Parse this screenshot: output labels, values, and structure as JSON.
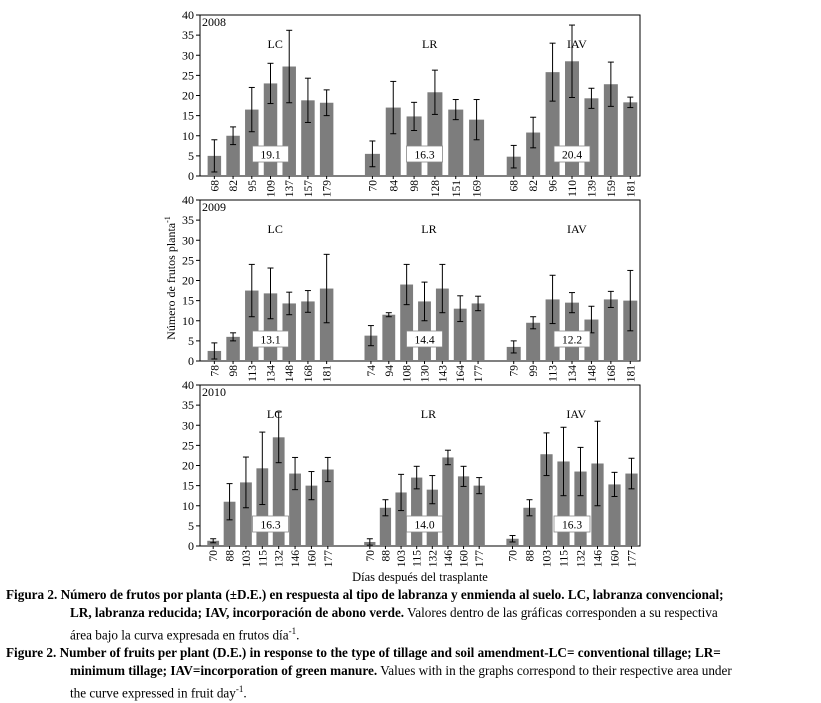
{
  "chart_data": {
    "type": "bar",
    "ylabel": "Número de frutos planta-1",
    "ylabel_main": "Número de frutos planta",
    "ylabel_sup": "-1",
    "xlabel": "Días después del trasplante",
    "ylim": [
      0,
      40
    ],
    "yticks": [
      0,
      5,
      10,
      15,
      20,
      25,
      30,
      35,
      40
    ],
    "panels": [
      {
        "year": "2008",
        "groups": [
          {
            "name": "LC",
            "area": "19.1",
            "categories": [
              "68",
              "82",
              "95",
              "109",
              "137",
              "157",
              "179"
            ],
            "values": [
              5.0,
              10.0,
              16.5,
              23.0,
              27.2,
              18.8,
              18.2
            ],
            "errors": [
              4.0,
              2.2,
              5.5,
              5.0,
              9.0,
              5.5,
              3.2
            ]
          },
          {
            "name": "LR",
            "area": "16.3",
            "categories": [
              "70",
              "84",
              "98",
              "128",
              "151",
              "169"
            ],
            "values": [
              5.5,
              17.0,
              14.8,
              20.8,
              16.5,
              14.0
            ],
            "errors": [
              3.2,
              6.5,
              3.5,
              5.5,
              2.5,
              5.0
            ]
          },
          {
            "name": "IAV",
            "area": "20.4",
            "categories": [
              "68",
              "82",
              "96",
              "110",
              "139",
              "159",
              "181"
            ],
            "values": [
              4.8,
              10.8,
              25.8,
              28.5,
              19.3,
              22.8,
              18.3
            ],
            "errors": [
              2.8,
              3.8,
              7.2,
              9.0,
              2.5,
              5.5,
              1.3
            ]
          }
        ]
      },
      {
        "year": "2009",
        "groups": [
          {
            "name": "LC",
            "area": "13.1",
            "categories": [
              "78",
              "98",
              "113",
              "134",
              "148",
              "168",
              "181"
            ],
            "values": [
              2.5,
              6.0,
              17.5,
              16.8,
              14.3,
              14.8,
              18.0
            ],
            "errors": [
              2.0,
              1.0,
              6.5,
              6.3,
              2.8,
              2.7,
              8.5
            ]
          },
          {
            "name": "LR",
            "area": "14.4",
            "categories": [
              "74",
              "94",
              "108",
              "130",
              "143",
              "164",
              "177"
            ],
            "values": [
              6.3,
              11.5,
              19.0,
              14.8,
              18.0,
              13.0,
              14.3
            ],
            "errors": [
              2.5,
              0.5,
              5.0,
              4.8,
              6.0,
              3.2,
              1.8
            ]
          },
          {
            "name": "IAV",
            "area": "12.2",
            "categories": [
              "79",
              "99",
              "113",
              "134",
              "148",
              "168",
              "181"
            ],
            "values": [
              3.5,
              9.5,
              15.3,
              14.5,
              10.3,
              15.3,
              15.0
            ],
            "errors": [
              1.5,
              1.5,
              6.0,
              2.5,
              3.3,
              2.0,
              7.5
            ]
          }
        ]
      },
      {
        "year": "2010",
        "groups": [
          {
            "name": "LC",
            "area": "16.3",
            "categories": [
              "70",
              "88",
              "103",
              "115",
              "132",
              "146",
              "160",
              "177"
            ],
            "values": [
              1.3,
              11.0,
              15.8,
              19.3,
              27.0,
              18.0,
              15.0,
              19.0
            ],
            "errors": [
              0.5,
              4.5,
              6.3,
              9.0,
              6.3,
              4.0,
              3.5,
              3.0
            ]
          },
          {
            "name": "LR",
            "area": "14.0",
            "categories": [
              "70",
              "88",
              "103",
              "115",
              "132",
              "146",
              "160",
              "177"
            ],
            "values": [
              1.0,
              9.5,
              13.3,
              17.0,
              14.0,
              22.0,
              17.3,
              15.0
            ],
            "errors": [
              0.8,
              2.0,
              4.5,
              2.8,
              3.5,
              1.8,
              2.5,
              2.0
            ]
          },
          {
            "name": "IAV",
            "area": "16.3",
            "categories": [
              "70",
              "88",
              "103",
              "115",
              "132",
              "146",
              "160",
              "177"
            ],
            "values": [
              1.8,
              9.5,
              22.8,
              21.0,
              18.5,
              20.5,
              15.3,
              18.0
            ],
            "errors": [
              0.8,
              2.0,
              5.3,
              8.5,
              6.0,
              10.5,
              3.0,
              3.8
            ]
          }
        ]
      }
    ]
  },
  "caption": {
    "es_label": "Figura 2.",
    "es_bold": "Número de frutos por planta (±D.E.) en respuesta al tipo de labranza y enmienda al suelo. LC, labranza convencional;",
    "es_bold2": "LR, labranza reducida; IAV, incorporación de abono verde.",
    "es_rest2": "Valores dentro de las gráficas corresponden a su respectiva",
    "es_rest3": "área bajo la curva expresada en frutos día",
    "es_sup": "-1",
    "es_end": ".",
    "en_label": "Figure 2.",
    "en_bold": "Number of fruits per plant (D.E.) in response to the type of tillage and soil amendment-LC= conventional tillage; LR=",
    "en_bold2": "minimum tillage; IAV=incorporation of green manure.",
    "en_rest2": "Values with in the graphs correspond to their respective area under",
    "en_rest3": "the curve expressed in fruit day",
    "en_sup": "-1",
    "en_end": "."
  }
}
